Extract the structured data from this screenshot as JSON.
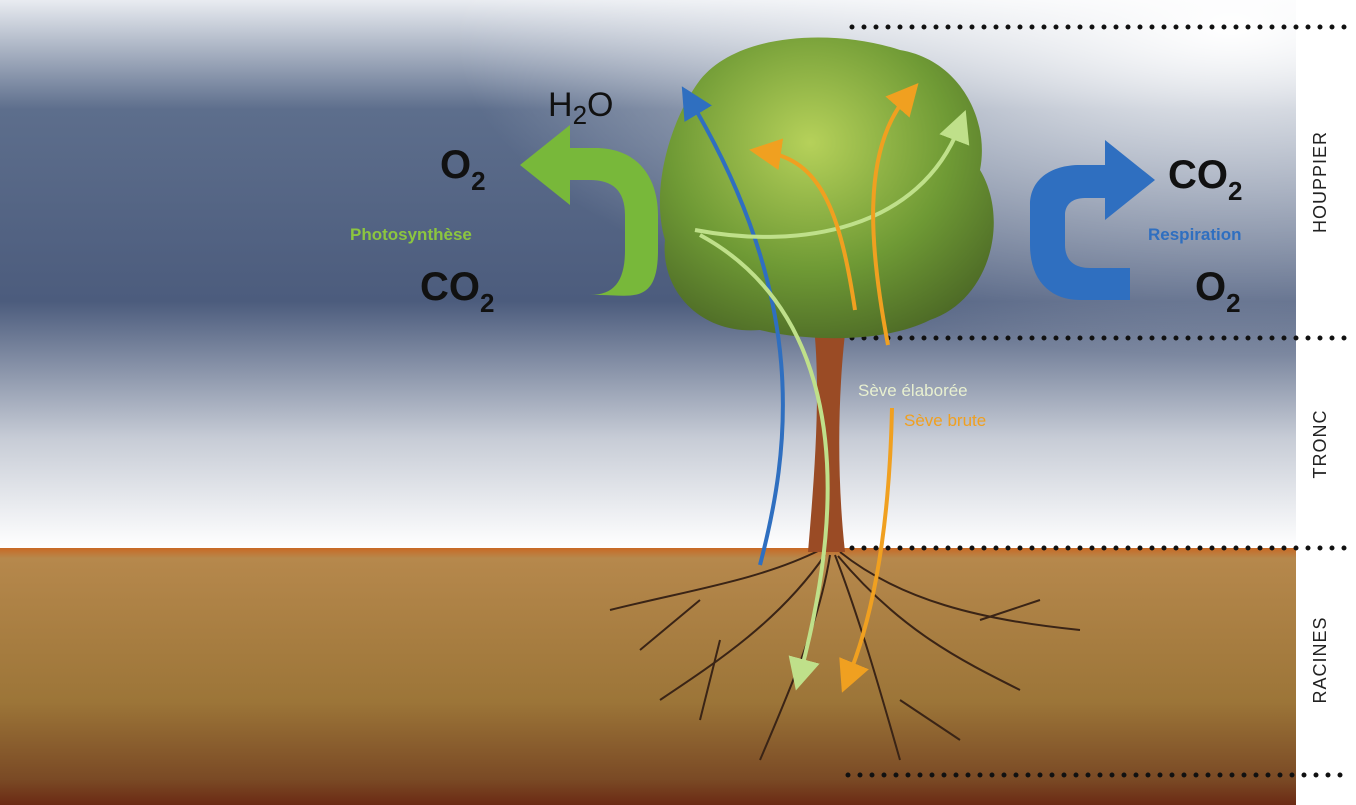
{
  "transpiration": {
    "pre": "H",
    "sub": "2",
    "post": "O"
  },
  "photosynthesis": {
    "label": "Photosynthèse",
    "output": {
      "symbol": "O",
      "sub": "2"
    },
    "input": {
      "symbol": "CO",
      "sub": "2"
    }
  },
  "respiration": {
    "label": "Respiration",
    "output": {
      "symbol": "CO",
      "sub": "2"
    },
    "input": {
      "symbol": "O",
      "sub": "2"
    }
  },
  "sap": {
    "elaborated": "Sève élaborée",
    "raw": "Sève brute"
  },
  "zones": [
    "HOUPPIER",
    "TRONC",
    "RACINES"
  ]
}
